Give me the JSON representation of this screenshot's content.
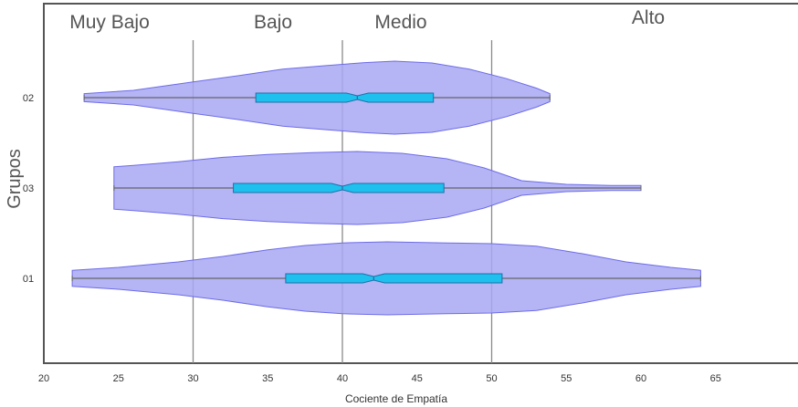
{
  "chart_data": {
    "type": "violin",
    "orientation": "horizontal",
    "title": "",
    "xlabel": "Cociente de Empatía",
    "ylabel": "Grupos",
    "xlim": [
      20,
      70
    ],
    "x_ticks": [
      20,
      25,
      30,
      35,
      40,
      45,
      50,
      55,
      60,
      65
    ],
    "categories": [
      "02",
      "03",
      "01"
    ],
    "zones": [
      {
        "label": "Muy Bajo",
        "from": 20,
        "to": 30
      },
      {
        "label": "Bajo",
        "from": 30,
        "to": 40
      },
      {
        "label": "Medio",
        "from": 40,
        "to": 50
      },
      {
        "label": "Alto",
        "from": 50,
        "to": 70
      }
    ],
    "reference_lines": [
      30,
      40,
      50
    ],
    "series": [
      {
        "group": "02",
        "min": 22.7,
        "q1": 34.2,
        "median": 41.0,
        "q3": 46.1,
        "max": 53.9,
        "density": [
          [
            22.7,
            0.11
          ],
          [
            26,
            0.2
          ],
          [
            30,
            0.43
          ],
          [
            33,
            0.6
          ],
          [
            36,
            0.78
          ],
          [
            39,
            0.88
          ],
          [
            41.5,
            0.96
          ],
          [
            43.5,
            1.0
          ],
          [
            46,
            0.95
          ],
          [
            48.5,
            0.78
          ],
          [
            51,
            0.52
          ],
          [
            53,
            0.26
          ],
          [
            53.9,
            0.11
          ]
        ]
      },
      {
        "group": "03",
        "min": 24.7,
        "q1": 32.7,
        "median": 40.0,
        "q3": 46.8,
        "max": 60.0,
        "density": [
          [
            24.7,
            0.58
          ],
          [
            26,
            0.62
          ],
          [
            29,
            0.72
          ],
          [
            32,
            0.84
          ],
          [
            35,
            0.92
          ],
          [
            38,
            0.97
          ],
          [
            41,
            1.0
          ],
          [
            44,
            0.95
          ],
          [
            47,
            0.8
          ],
          [
            49.5,
            0.55
          ],
          [
            52,
            0.2
          ],
          [
            55,
            0.1
          ],
          [
            58,
            0.07
          ],
          [
            60,
            0.07
          ]
        ]
      },
      {
        "group": "01",
        "min": 21.9,
        "q1": 36.2,
        "median": 42.1,
        "q3": 50.7,
        "max": 64.0,
        "density": [
          [
            21.9,
            0.22
          ],
          [
            25,
            0.3
          ],
          [
            29,
            0.45
          ],
          [
            32,
            0.6
          ],
          [
            35,
            0.78
          ],
          [
            37.5,
            0.9
          ],
          [
            40,
            0.97
          ],
          [
            43,
            1.0
          ],
          [
            47,
            0.97
          ],
          [
            50,
            0.95
          ],
          [
            53,
            0.88
          ],
          [
            56,
            0.68
          ],
          [
            59,
            0.45
          ],
          [
            62,
            0.3
          ],
          [
            64,
            0.22
          ]
        ]
      }
    ],
    "colors": {
      "violin_fill": "#a8a7f2",
      "violin_stroke": "#6d6ce8",
      "box_fill": "#1ec0ee",
      "box_stroke": "#1e6fa8",
      "whisker": "#666666",
      "reference_line": "#8a8a8a",
      "frame": "#555555"
    },
    "grid": false,
    "legend": "none"
  }
}
